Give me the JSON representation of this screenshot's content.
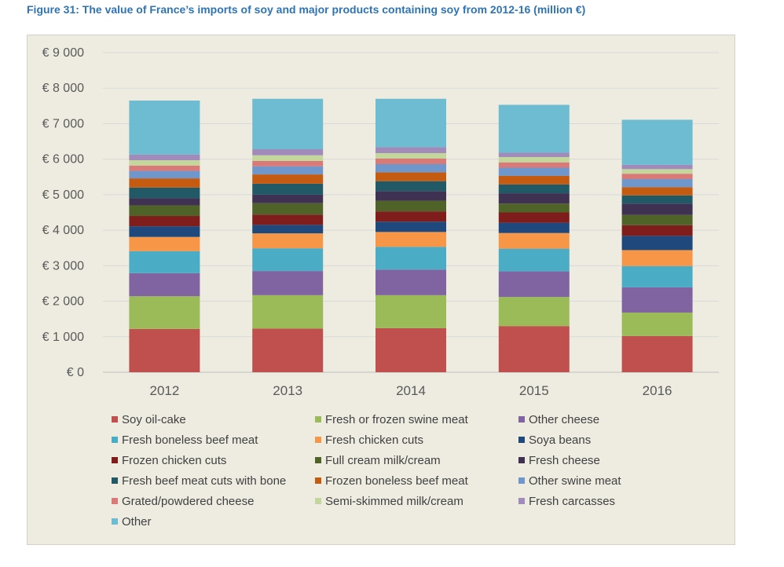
{
  "title": "Figure 31: The value of France’s imports of soy and major products containing soy from 2012-16 (million €)",
  "chart_data": {
    "type": "bar",
    "stacked": true,
    "categories": [
      "2012",
      "2013",
      "2014",
      "2015",
      "2016"
    ],
    "ylim": [
      0,
      9000
    ],
    "yticks": [
      {
        "value": 0,
        "label": "€ 0"
      },
      {
        "value": 1000,
        "label": "€ 1 000"
      },
      {
        "value": 2000,
        "label": "€ 2 000"
      },
      {
        "value": 3000,
        "label": "€ 3 000"
      },
      {
        "value": 4000,
        "label": "€ 4 000"
      },
      {
        "value": 5000,
        "label": "€ 5 000"
      },
      {
        "value": 6000,
        "label": "€ 6 000"
      },
      {
        "value": 7000,
        "label": "€ 7 000"
      },
      {
        "value": 8000,
        "label": "€ 8 000"
      },
      {
        "value": 9000,
        "label": "€ 9 000"
      }
    ],
    "grid": true,
    "legend_position": "bottom",
    "series": [
      {
        "name": "Soy oil-cake",
        "color": "#c0504d",
        "values": [
          1220,
          1230,
          1240,
          1300,
          1020
        ]
      },
      {
        "name": "Fresh or frozen swine meat",
        "color": "#9bbb59",
        "values": [
          920,
          940,
          930,
          820,
          660
        ]
      },
      {
        "name": "Other cheese",
        "color": "#8064a2",
        "values": [
          650,
          680,
          720,
          720,
          710
        ]
      },
      {
        "name": "Fresh boneless beef meat",
        "color": "#4bacc6",
        "values": [
          620,
          640,
          640,
          640,
          600
        ]
      },
      {
        "name": "Fresh chicken cuts",
        "color": "#f79646",
        "values": [
          400,
          420,
          420,
          440,
          450
        ]
      },
      {
        "name": "Soya beans",
        "color": "#1f497d",
        "values": [
          300,
          240,
          290,
          290,
          400
        ]
      },
      {
        "name": "Frozen chicken cuts",
        "color": "#7f1d1d",
        "values": [
          290,
          290,
          290,
          290,
          300
        ]
      },
      {
        "name": "Full cream milk/cream",
        "color": "#4f6228",
        "values": [
          300,
          320,
          300,
          250,
          290
        ]
      },
      {
        "name": "Fresh cheese",
        "color": "#3f3151",
        "values": [
          200,
          240,
          270,
          290,
          320
        ]
      },
      {
        "name": "Fresh beef meat cuts with bone",
        "color": "#215967",
        "values": [
          300,
          310,
          280,
          250,
          230
        ]
      },
      {
        "name": "Frozen boneless beef meat",
        "color": "#c55a11",
        "values": [
          260,
          260,
          250,
          240,
          230
        ]
      },
      {
        "name": "Other swine meat",
        "color": "#6f97cc",
        "values": [
          210,
          230,
          230,
          230,
          230
        ]
      },
      {
        "name": "Grated/powdered cheese",
        "color": "#da7a78",
        "values": [
          150,
          150,
          160,
          150,
          150
        ]
      },
      {
        "name": "Semi-skimmed milk/cream",
        "color": "#c3d69b",
        "values": [
          150,
          160,
          150,
          150,
          130
        ]
      },
      {
        "name": "Fresh carcasses",
        "color": "#a08bbb",
        "values": [
          160,
          170,
          170,
          120,
          120
        ]
      },
      {
        "name": "Other",
        "color": "#6dbcd2",
        "values": [
          1520,
          1420,
          1360,
          1350,
          1270
        ]
      }
    ]
  }
}
